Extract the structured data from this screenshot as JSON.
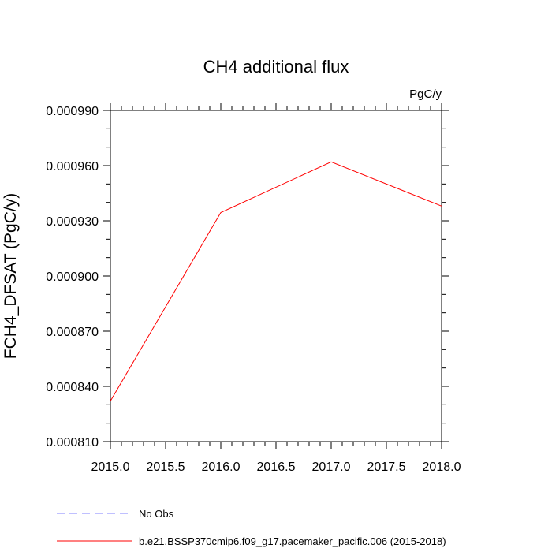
{
  "chart_data": {
    "type": "line",
    "title": "CH4 additional flux",
    "units": "PgC/y",
    "ylabel": "FCH4_DFSAT  (PgC/y)",
    "xlabel": "",
    "xlim": [
      2015.0,
      2018.0
    ],
    "ylim": [
      0.00081,
      0.00099
    ],
    "x_ticks": [
      "2015.0",
      "2015.5",
      "2016.0",
      "2016.5",
      "2017.0",
      "2017.5",
      "2018.0"
    ],
    "y_ticks": [
      "0.000810",
      "0.000840",
      "0.000870",
      "0.000900",
      "0.000930",
      "0.000960",
      "0.000990"
    ],
    "grid": false,
    "legend_position": "bottom",
    "series": [
      {
        "name": "b.e21.BSSP370cmip6.f09_g17.pacemaker_pacific.006 (2015-2018)",
        "color": "#ff0000",
        "style": "solid",
        "x": [
          2015,
          2016,
          2017,
          2018
        ],
        "y": [
          0.000832,
          0.0009345,
          0.000962,
          0.000938
        ]
      }
    ],
    "legend": [
      {
        "label": "No Obs",
        "color": "#8080ff",
        "style": "dashed"
      },
      {
        "label": "b.e21.BSSP370cmip6.f09_g17.pacemaker_pacific.006 (2015-2018)",
        "color": "#ff0000",
        "style": "solid"
      }
    ]
  }
}
